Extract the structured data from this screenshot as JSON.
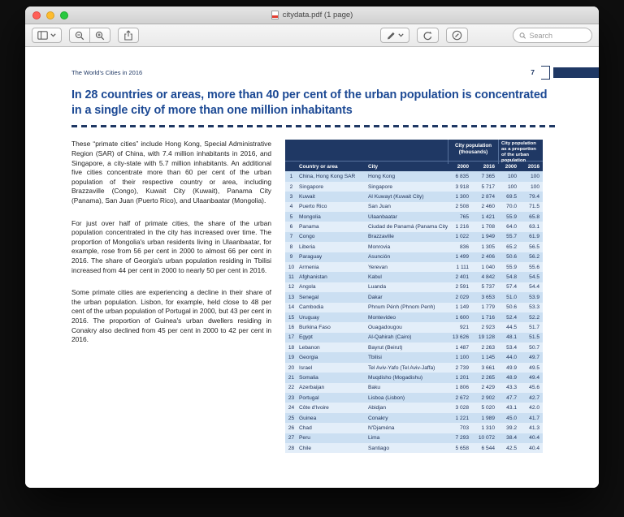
{
  "window": {
    "title": "citydata.pdf (1 page)",
    "search": {
      "placeholder": "Search"
    }
  },
  "doc": {
    "running_header": "The World's Cities in 2016",
    "page_number": "7",
    "title": "In 28 countries or areas, more than 40 per cent of the urban population is concentrated in a single city of more than one million inhabitants",
    "paragraphs": [
      "These “primate cities” include Hong Kong, Special Administrative Region (SAR) of China, with 7.4 million inhabitants in 2016, and Singapore, a city-state with 5.7 million inhabitants.  An additional five cities concentrate more than 60 per cent of the urban population of their respective country or area, including Brazzaville (Congo), Kuwait City (Kuwait), Panama City (Panama), San Juan (Puerto Rico), and Ulaanbaatar (Mongolia).",
      "For just over half of primate cities, the share of the urban population concentrated in the city has increased over time.  The proportion of Mongolia's urban residents living in Ulaanbaatar, for example, rose from 56 per cent in 2000 to almost 66 per cent in 2016.  The share of Georgia's urban population residing in Tbilisi increased from 44 per cent in 2000 to nearly 50 per cent in 2016.",
      "Some primate cities are experiencing a decline in their share of the urban population.  Lisbon, for example, held close to 48 per cent of the urban population of Portugal in 2000, but 43 per cent in 2016.  The proportion of Guinea's urban dwellers residing in Conakry also declined from 45 per cent in 2000 to 42 per cent in 2016."
    ]
  },
  "table": {
    "group_headers": [
      "City population (thousands)",
      "City population as a proportion of the urban population"
    ],
    "columns": [
      "Country or area",
      "City",
      "2000",
      "2016",
      "2000",
      "2016"
    ],
    "rows": [
      [
        "1",
        "China, Hong Kong SAR",
        "Hong Kong",
        "6 835",
        "7 365",
        "100",
        "100"
      ],
      [
        "2",
        "Singapore",
        "Singapore",
        "3 918",
        "5 717",
        "100",
        "100"
      ],
      [
        "3",
        "Kuwait",
        "Al Kuwayt (Kuwait City)",
        "1 300",
        "2 874",
        "69.5",
        "79.4"
      ],
      [
        "4",
        "Puerto Rico",
        "San Juan",
        "2 508",
        "2 460",
        "70.0",
        "71.5"
      ],
      [
        "5",
        "Mongolia",
        "Ulaanbaatar",
        "765",
        "1 421",
        "55.9",
        "65.8"
      ],
      [
        "6",
        "Panama",
        "Ciudad de Panamá (Panama City)",
        "1 216",
        "1 708",
        "64.0",
        "63.1"
      ],
      [
        "7",
        "Congo",
        "Brazzaville",
        "1 022",
        "1 949",
        "55.7",
        "61.9"
      ],
      [
        "8",
        "Liberia",
        "Monrovia",
        "836",
        "1 305",
        "65.2",
        "56.5"
      ],
      [
        "9",
        "Paraguay",
        "Asunción",
        "1 499",
        "2 406",
        "50.6",
        "56.2"
      ],
      [
        "10",
        "Armenia",
        "Yerevan",
        "1 111",
        "1 040",
        "55.9",
        "55.6"
      ],
      [
        "11",
        "Afghanistan",
        "Kabul",
        "2 401",
        "4 842",
        "54.8",
        "54.5"
      ],
      [
        "12",
        "Angola",
        "Luanda",
        "2 591",
        "5 737",
        "57.4",
        "54.4"
      ],
      [
        "13",
        "Senegal",
        "Dakar",
        "2 029",
        "3 653",
        "51.0",
        "53.9"
      ],
      [
        "14",
        "Cambodia",
        "Phnum Pénh (Phnom Penh)",
        "1 149",
        "1 779",
        "50.6",
        "53.3"
      ],
      [
        "15",
        "Uruguay",
        "Montevideo",
        "1 600",
        "1 716",
        "52.4",
        "52.2"
      ],
      [
        "16",
        "Burkina Faso",
        "Ouagadougou",
        "921",
        "2 923",
        "44.5",
        "51.7"
      ],
      [
        "17",
        "Egypt",
        "Al-Qahirah (Cairo)",
        "13 626",
        "19 128",
        "48.1",
        "51.5"
      ],
      [
        "18",
        "Lebanon",
        "Bayrut (Beirut)",
        "1 487",
        "2 263",
        "53.4",
        "50.7"
      ],
      [
        "19",
        "Georgia",
        "Tbilisi",
        "1 100",
        "1 145",
        "44.0",
        "49.7"
      ],
      [
        "20",
        "Israel",
        "Tel Aviv-Yafo (Tel Aviv-Jaffa)",
        "2 739",
        "3 661",
        "49.9",
        "49.5"
      ],
      [
        "21",
        "Somalia",
        "Muqdisho (Mogadishu)",
        "1 201",
        "2 265",
        "48.9",
        "49.4"
      ],
      [
        "22",
        "Azerbaijan",
        "Baku",
        "1 806",
        "2 429",
        "43.3",
        "45.6"
      ],
      [
        "23",
        "Portugal",
        "Lisboa (Lisbon)",
        "2 672",
        "2 902",
        "47.7",
        "42.7"
      ],
      [
        "24",
        "Côte d'Ivoire",
        "Abidjan",
        "3 028",
        "5 020",
        "43.1",
        "42.0"
      ],
      [
        "25",
        "Guinea",
        "Conakry",
        "1 221",
        "1 989",
        "45.0",
        "41.7"
      ],
      [
        "26",
        "Chad",
        "N'Djaména",
        "703",
        "1 310",
        "39.2",
        "41.3"
      ],
      [
        "27",
        "Peru",
        "Lima",
        "7 293",
        "10 072",
        "38.4",
        "40.4"
      ],
      [
        "28",
        "Chile",
        "Santiago",
        "5 658",
        "6 544",
        "42.5",
        "40.4"
      ]
    ]
  },
  "colors": {
    "header_navy": "#1f3864",
    "title_blue": "#1c4994",
    "row_odd": "#cbdff2",
    "row_even": "#e3eef9"
  }
}
